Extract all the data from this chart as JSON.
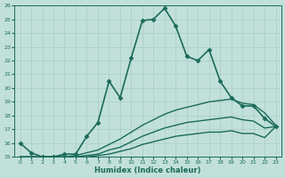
{
  "xlabel": "Humidex (Indice chaleur)",
  "ylabel": "",
  "bg_color": "#c2e0da",
  "grid_color": "#a8cdc8",
  "line_color": "#1a6b5a",
  "xlim": [
    -0.5,
    23.5
  ],
  "ylim": [
    15,
    26
  ],
  "xticks": [
    0,
    1,
    2,
    3,
    4,
    5,
    6,
    7,
    8,
    9,
    10,
    11,
    12,
    13,
    14,
    15,
    16,
    17,
    18,
    19,
    20,
    21,
    22,
    23
  ],
  "yticks": [
    15,
    16,
    17,
    18,
    19,
    20,
    21,
    22,
    23,
    24,
    25,
    26
  ],
  "series": [
    {
      "x": [
        0,
        1,
        2,
        3,
        4,
        5,
        6,
        7,
        8,
        9,
        10,
        11,
        12,
        13,
        14,
        15,
        16,
        17,
        18,
        19,
        20,
        21,
        22,
        23
      ],
      "y": [
        16.0,
        15.3,
        15.0,
        15.0,
        15.2,
        15.2,
        16.5,
        17.5,
        20.5,
        19.3,
        22.2,
        24.9,
        25.0,
        25.8,
        24.5,
        22.3,
        22.0,
        22.8,
        20.5,
        19.3,
        18.7,
        18.7,
        17.8,
        17.2
      ],
      "marker": "D",
      "markersize": 2.5,
      "linewidth": 1.2
    },
    {
      "x": [
        0,
        1,
        2,
        3,
        4,
        5,
        6,
        7,
        8,
        9,
        10,
        11,
        12,
        13,
        14,
        15,
        16,
        17,
        18,
        19,
        20,
        21,
        22,
        23
      ],
      "y": [
        15.0,
        15.0,
        15.0,
        15.0,
        15.0,
        15.1,
        15.3,
        15.5,
        15.9,
        16.3,
        16.8,
        17.3,
        17.7,
        18.1,
        18.4,
        18.6,
        18.8,
        19.0,
        19.1,
        19.2,
        18.9,
        18.8,
        18.2,
        17.3
      ],
      "marker": null,
      "linewidth": 1.0
    },
    {
      "x": [
        0,
        1,
        2,
        3,
        4,
        5,
        6,
        7,
        8,
        9,
        10,
        11,
        12,
        13,
        14,
        15,
        16,
        17,
        18,
        19,
        20,
        21,
        22,
        23
      ],
      "y": [
        15.0,
        15.0,
        15.0,
        15.0,
        15.0,
        15.0,
        15.1,
        15.2,
        15.5,
        15.7,
        16.1,
        16.5,
        16.8,
        17.1,
        17.3,
        17.5,
        17.6,
        17.7,
        17.8,
        17.9,
        17.7,
        17.6,
        17.1,
        17.2
      ],
      "marker": null,
      "linewidth": 1.0
    },
    {
      "x": [
        0,
        1,
        2,
        3,
        4,
        5,
        6,
        7,
        8,
        9,
        10,
        11,
        12,
        13,
        14,
        15,
        16,
        17,
        18,
        19,
        20,
        21,
        22,
        23
      ],
      "y": [
        15.0,
        15.0,
        15.0,
        15.0,
        15.0,
        15.0,
        15.0,
        15.1,
        15.2,
        15.4,
        15.6,
        15.9,
        16.1,
        16.3,
        16.5,
        16.6,
        16.7,
        16.8,
        16.8,
        16.9,
        16.7,
        16.7,
        16.4,
        17.2
      ],
      "marker": null,
      "linewidth": 1.0
    }
  ]
}
